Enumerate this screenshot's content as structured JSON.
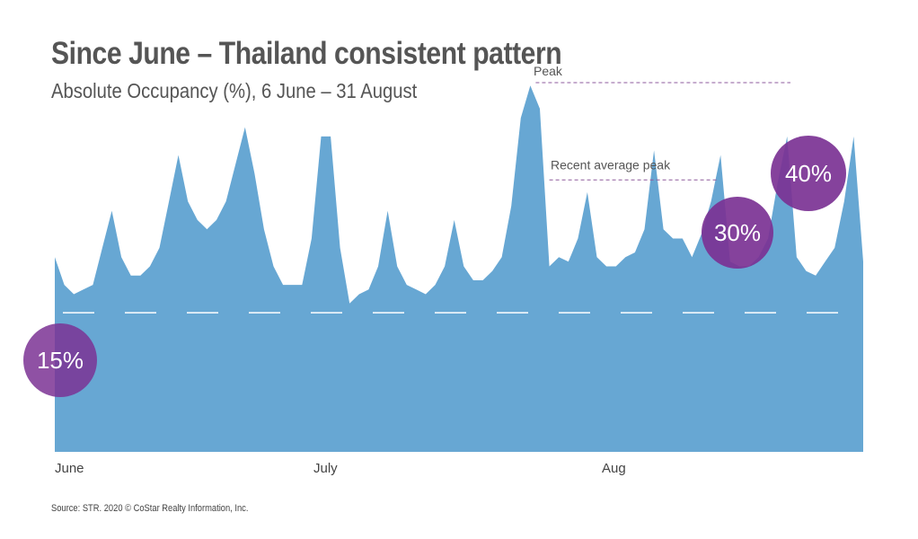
{
  "chart_data": {
    "type": "area",
    "title": "Since June – Thailand consistent pattern",
    "subtitle": "Absolute Occupancy (%), 6 June – 31 August",
    "xlabel": "",
    "ylabel": "",
    "x_ticks": [
      "June",
      "July",
      "Aug"
    ],
    "ylim": [
      0,
      40
    ],
    "grid": false,
    "color": "#67a7d3",
    "series": [
      {
        "name": "",
        "values": [
          21,
          18,
          17,
          17.5,
          18,
          22,
          26,
          21,
          19,
          19,
          20,
          22,
          27,
          32,
          27,
          25,
          24,
          25,
          27,
          31,
          35,
          30,
          24,
          20,
          18,
          18,
          18,
          23,
          34,
          34,
          22,
          16,
          17,
          17.5,
          20,
          26,
          20,
          18,
          17.5,
          17,
          18,
          20,
          25,
          20,
          18.5,
          18.5,
          19.5,
          21,
          26.5,
          36,
          39.5,
          37,
          20,
          21,
          20.5,
          23,
          28,
          21,
          20,
          20,
          21,
          21.5,
          24,
          32.5,
          24,
          23,
          23,
          21,
          23.5,
          27,
          32,
          20.5,
          20,
          20,
          21,
          23,
          29,
          34,
          21,
          19.5,
          19,
          20.5,
          22,
          27,
          34,
          20.5
        ]
      }
    ],
    "reference_lines": [
      {
        "label": "Peak",
        "value": 40,
        "badge": "40%",
        "style": "dashed",
        "color": "#8d5a9c"
      },
      {
        "label": "Recent average peak",
        "value": 30,
        "badge": "30%",
        "style": "dashed",
        "color": "#8d5a9c"
      },
      {
        "label": "",
        "value": 15,
        "badge": "15%",
        "style": "dashed",
        "color": "#ffffff"
      }
    ],
    "badge_color": "#7b3294"
  },
  "source": "Source: STR. 2020 © CoStar Realty Information, Inc."
}
